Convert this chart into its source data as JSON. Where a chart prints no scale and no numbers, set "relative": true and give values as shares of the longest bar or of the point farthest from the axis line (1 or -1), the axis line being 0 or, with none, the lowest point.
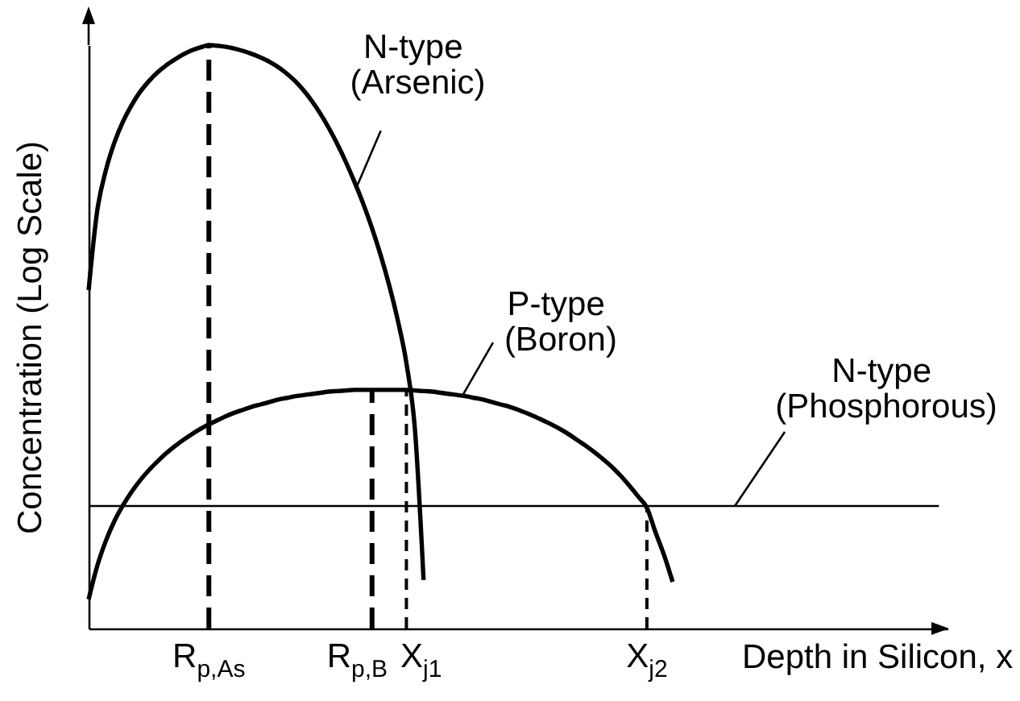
{
  "chart_data": {
    "type": "line",
    "xlabel": "Depth in Silicon, x",
    "ylabel": "Concentration (Log Scale)",
    "relative": true,
    "categories": [
      null,
      null,
      null,
      null,
      null,
      null,
      null,
      null,
      null,
      null,
      null,
      null,
      null,
      null,
      "R$_{p,As}$",
      null,
      null,
      null,
      null,
      null,
      null,
      null,
      null,
      null,
      null,
      null,
      null,
      null,
      null,
      null,
      null,
      null,
      null,
      "R$_{p,B}$",
      null,
      null,
      null,
      "X$_{j1}$",
      null,
      null,
      null,
      null,
      null,
      null,
      null,
      null,
      null,
      null,
      null,
      null,
      null,
      null,
      null,
      null,
      null,
      null,
      null,
      null,
      null,
      null,
      null,
      null,
      null,
      null,
      null,
      "X$_{j2}$",
      null,
      null,
      null,
      null,
      null,
      null,
      null,
      null,
      null,
      null,
      null,
      null,
      null,
      null,
      null,
      null,
      null,
      null,
      null,
      null,
      null,
      null,
      null,
      null,
      null,
      null,
      null,
      null,
      null,
      null,
      null,
      null,
      null,
      null,
      null
    ],
    "series": [
      {
        "name": "N-type (Arsenic)",
        "color": "#000000",
        "values": [
          0.58,
          0.716,
          0.785,
          0.833,
          0.869,
          0.897,
          0.92,
          0.938,
          0.953,
          0.965,
          0.975,
          0.984,
          0.991,
          0.996,
          1,
          0.999,
          0.997,
          0.994,
          0.99,
          0.985,
          0.979,
          0.972,
          0.963,
          0.952,
          0.939,
          0.923,
          0.904,
          0.882,
          0.857,
          0.829,
          0.798,
          0.764,
          0.727,
          0.686,
          0.64,
          0.588,
          0.528,
          0.455,
          0.34,
          0.083,
          null,
          null,
          null,
          null,
          null,
          null,
          null,
          null,
          null,
          null,
          null,
          null,
          null,
          null,
          null,
          null,
          null,
          null,
          null,
          null,
          null,
          null,
          null,
          null,
          null,
          null,
          null,
          null,
          null,
          null,
          null,
          null,
          null,
          null,
          null,
          null,
          null,
          null,
          null,
          null,
          null,
          null,
          null,
          null,
          null,
          null,
          null,
          null,
          null,
          null,
          null,
          null,
          null,
          null,
          null,
          null,
          null,
          null,
          null,
          null,
          null
        ]
      },
      {
        "name": "P-type (Boron)",
        "color": "#000000",
        "values": [
          0.05,
          0.107,
          0.15,
          0.184,
          0.211,
          0.234,
          0.254,
          0.271,
          0.286,
          0.3,
          0.312,
          0.323,
          0.333,
          0.342,
          0.35,
          0.357,
          0.364,
          0.37,
          0.375,
          0.38,
          0.384,
          0.388,
          0.392,
          0.395,
          0.398,
          0.4,
          0.402,
          0.404,
          0.406,
          0.407,
          0.408,
          0.409,
          0.409,
          0.409,
          0.409,
          0.409,
          0.409,
          0.409,
          0.408,
          0.407,
          0.406,
          0.404,
          0.402,
          0.4,
          0.398,
          0.395,
          0.392,
          0.388,
          0.384,
          0.38,
          0.375,
          0.369,
          0.363,
          0.356,
          0.349,
          0.341,
          0.332,
          0.322,
          0.312,
          0.301,
          0.289,
          0.276,
          0.261,
          0.244,
          0.226,
          0.207,
          0.165,
          0.126,
          0.08,
          null,
          null,
          null,
          null,
          null,
          null,
          null,
          null,
          null,
          null,
          null,
          null,
          null,
          null,
          null,
          null,
          null,
          null,
          null,
          null,
          null,
          null,
          null,
          null,
          null,
          null,
          null,
          null,
          null,
          null,
          null,
          null
        ]
      },
      {
        "name": "N-type (Phosphorous)",
        "color": "#000000",
        "values": [
          0.21,
          0.21,
          0.21,
          0.21,
          0.21,
          0.21,
          0.21,
          0.21,
          0.21,
          0.21,
          0.21,
          0.21,
          0.21,
          0.21,
          0.21,
          0.21,
          0.21,
          0.21,
          0.21,
          0.21,
          0.21,
          0.21,
          0.21,
          0.21,
          0.21,
          0.21,
          0.21,
          0.21,
          0.21,
          0.21,
          0.21,
          0.21,
          0.21,
          0.21,
          0.21,
          0.21,
          0.21,
          0.21,
          0.21,
          0.21,
          0.21,
          0.21,
          0.21,
          0.21,
          0.21,
          0.21,
          0.21,
          0.21,
          0.21,
          0.21,
          0.21,
          0.21,
          0.21,
          0.21,
          0.21,
          0.21,
          0.21,
          0.21,
          0.21,
          0.21,
          0.21,
          0.21,
          0.21,
          0.21,
          0.21,
          0.21,
          0.21,
          0.21,
          0.21,
          0.21,
          0.21,
          0.21,
          0.21,
          0.21,
          0.21,
          0.21,
          0.21,
          0.21,
          0.21,
          0.21,
          0.21,
          0.21,
          0.21,
          0.21,
          0.21,
          0.21,
          0.21,
          0.21,
          0.21,
          0.21,
          0.21,
          0.21,
          0.21,
          0.21,
          0.21,
          0.21,
          0.21,
          0.21,
          0.21,
          0.21,
          null
        ]
      },
      {
        "color": "#000000",
        "line_style": "dashed",
        "x": [
          "R$_{p,As}$",
          "R$_{p,As}$"
        ],
        "values": [
          0,
          1
        ]
      },
      {
        "color": "#000000",
        "line_style": "dashed",
        "x": [
          "R$_{p,B}$",
          "R$_{p,B}$"
        ],
        "values": [
          0,
          0.409
        ]
      },
      {
        "color": "#000000",
        "line_style": "dotted",
        "x": [
          "X$_{j1}$",
          "X$_{j1}$"
        ],
        "values": [
          0,
          0.409
        ]
      },
      {
        "color": "#000000",
        "line_style": "dotted",
        "x": [
          "X$_{j2}$",
          "X$_{j2}$"
        ],
        "values": [
          0,
          0.21
        ]
      }
    ]
  }
}
